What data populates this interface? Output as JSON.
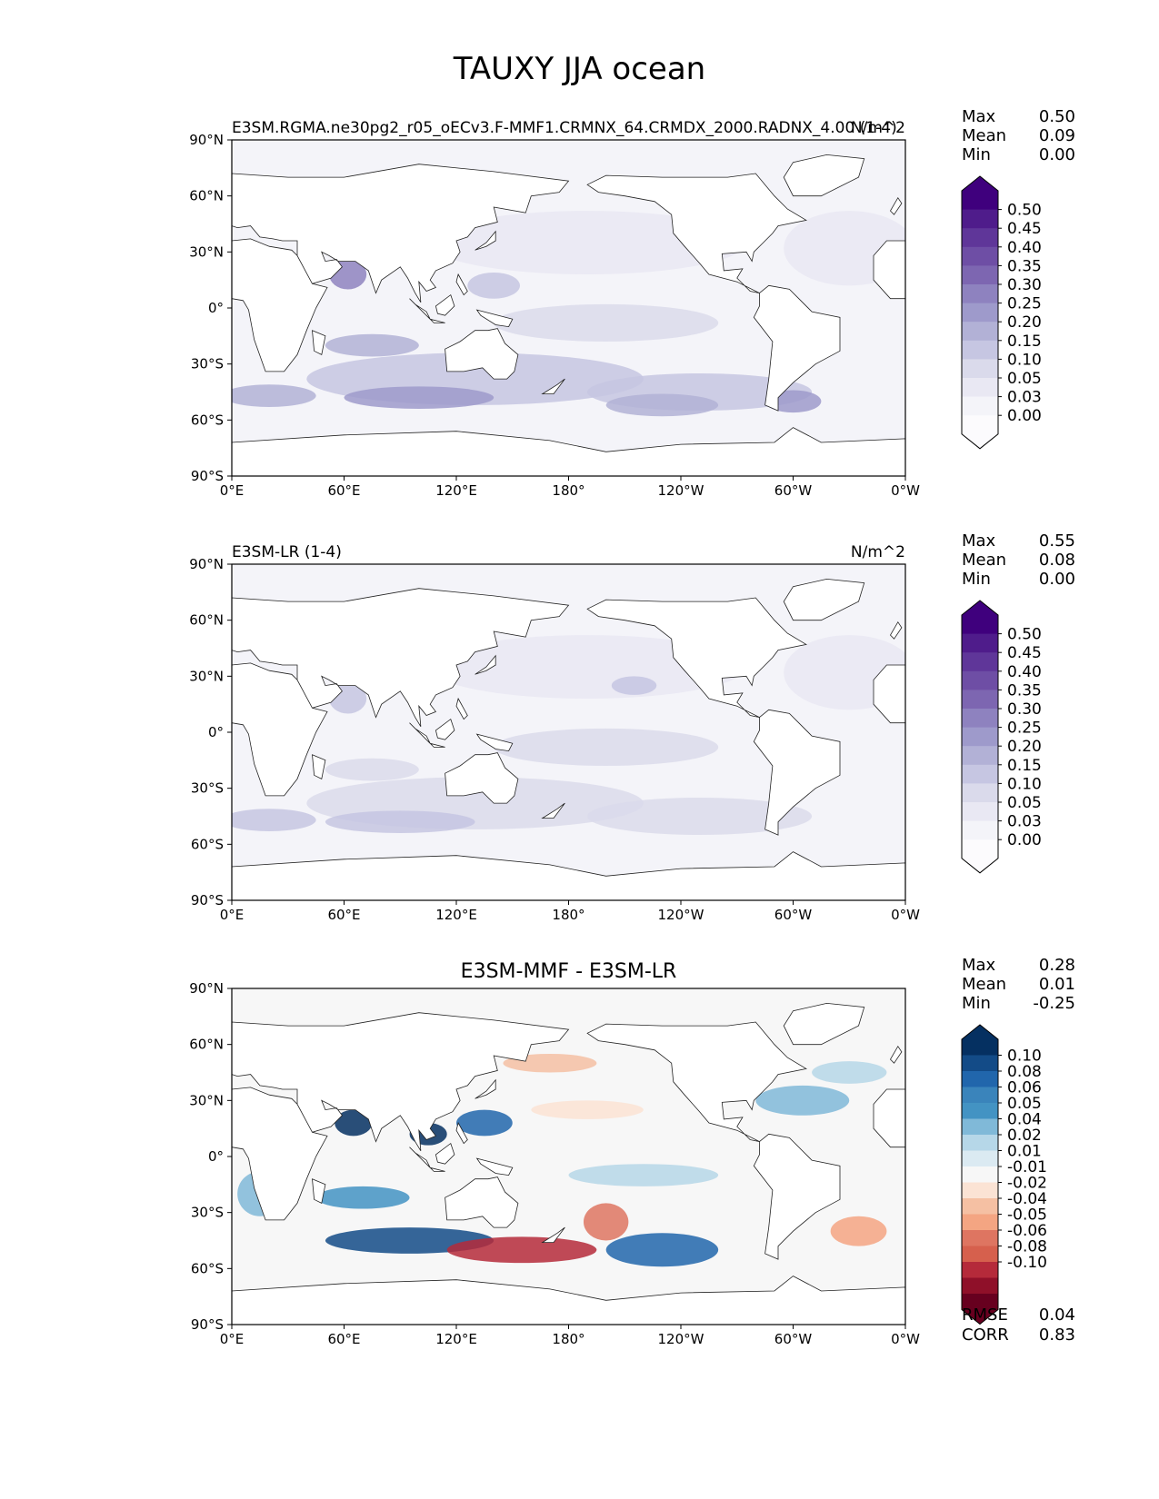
{
  "title": "TAUXY JJA ocean",
  "axes": {
    "lat_ticks": [
      "90°N",
      "60°N",
      "30°N",
      "0°",
      "30°S",
      "60°S",
      "90°S"
    ],
    "lon_ticks": [
      "0°E",
      "60°E",
      "120°E",
      "180°",
      "120°W",
      "60°W",
      "0°W"
    ]
  },
  "chart_data": [
    {
      "type": "heatmap",
      "title_left": "E3SM.RGMA.ne30pg2_r05_oECv3.F-MMF1.CRMNX_64.CRMDX_2000.RADNX_4.00 (1-4)",
      "title_center": "",
      "title_right": "N/m^2",
      "stats": [
        {
          "label": "Max",
          "value": "0.50"
        },
        {
          "label": "Mean",
          "value": "0.09"
        },
        {
          "label": "Min",
          "value": "0.00"
        }
      ],
      "colorbar": {
        "labels": [
          "0.50",
          "0.45",
          "0.40",
          "0.35",
          "0.30",
          "0.25",
          "0.20",
          "0.15",
          "0.10",
          "0.05",
          "0.03",
          "0.00"
        ],
        "colors": [
          "#3f007d",
          "#4f1c8b",
          "#5f3699",
          "#6e4ea5",
          "#7d66b1",
          "#8e82bf",
          "#9e9acb",
          "#b2b1d6",
          "#c6c6e2",
          "#dadaeb",
          "#e9e8f3",
          "#f4f4f9",
          "#fcfbfd"
        ]
      },
      "lat_range": [
        -90,
        90
      ],
      "lon_range": [
        0,
        360
      ]
    },
    {
      "type": "heatmap",
      "title_left": "E3SM-LR (1-4)",
      "title_center": "",
      "title_right": "N/m^2",
      "stats": [
        {
          "label": "Max",
          "value": "0.55"
        },
        {
          "label": "Mean",
          "value": "0.08"
        },
        {
          "label": "Min",
          "value": "0.00"
        }
      ],
      "colorbar": {
        "labels": [
          "0.50",
          "0.45",
          "0.40",
          "0.35",
          "0.30",
          "0.25",
          "0.20",
          "0.15",
          "0.10",
          "0.05",
          "0.03",
          "0.00"
        ],
        "colors": [
          "#3f007d",
          "#4f1c8b",
          "#5f3699",
          "#6e4ea5",
          "#7d66b1",
          "#8e82bf",
          "#9e9acb",
          "#b2b1d6",
          "#c6c6e2",
          "#dadaeb",
          "#e9e8f3",
          "#f4f4f9",
          "#fcfbfd"
        ]
      },
      "lat_range": [
        -90,
        90
      ],
      "lon_range": [
        0,
        360
      ]
    },
    {
      "type": "heatmap",
      "title_left": "",
      "title_center": "E3SM-MMF - E3SM-LR",
      "title_right": "",
      "stats": [
        {
          "label": "Max",
          "value": "0.28"
        },
        {
          "label": "Mean",
          "value": "0.01"
        },
        {
          "label": "Min",
          "value": "-0.25"
        }
      ],
      "colorbar": {
        "labels": [
          "0.10",
          "0.08",
          "0.06",
          "0.05",
          "0.04",
          "0.02",
          "0.01",
          "-0.01",
          "-0.02",
          "-0.04",
          "-0.05",
          "-0.06",
          "-0.08",
          "-0.10"
        ],
        "colors": [
          "#053061",
          "#134b87",
          "#2166ac",
          "#3a84bb",
          "#4393c3",
          "#80b9d8",
          "#b6d7e8",
          "#dbeaf2",
          "#f7f7f7",
          "#fbe3d4",
          "#f5c0a3",
          "#f4a582",
          "#de7561",
          "#d6604d",
          "#b52a3a",
          "#8f1029",
          "#67001f"
        ]
      },
      "metrics": [
        {
          "label": "RMSE",
          "value": "0.04"
        },
        {
          "label": "CORR",
          "value": "0.83"
        }
      ],
      "lat_range": [
        -90,
        90
      ],
      "lon_range": [
        0,
        360
      ]
    }
  ]
}
